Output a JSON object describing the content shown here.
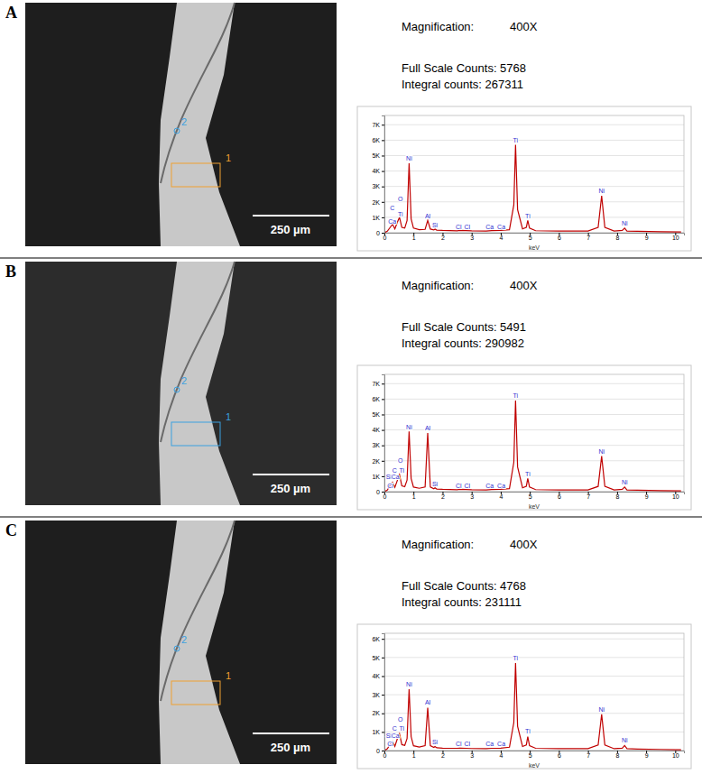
{
  "chart_data": [
    {
      "type": "line",
      "title": "A",
      "x_label": "keV",
      "annotations": [
        "Magnification:",
        "400X",
        "Full Scale Counts: 5768",
        "Integral counts: 267311"
      ],
      "region_labels": [
        "1",
        "2"
      ],
      "scale_bar": "250 µm",
      "color": "#c00000",
      "grid": true,
      "xlim": [
        0,
        10.3
      ],
      "xticks": [
        0,
        1,
        2,
        3,
        4,
        5,
        6,
        7,
        8,
        9,
        10
      ],
      "ylim": [
        0,
        7600
      ],
      "yticks": [
        0,
        {
          "value": 1000,
          "label": "1K"
        },
        {
          "value": 2000,
          "label": "2K"
        },
        {
          "value": 3000,
          "label": "3K"
        },
        {
          "value": 4000,
          "label": "4K"
        },
        {
          "value": 5000,
          "label": "5K"
        },
        {
          "value": 6000,
          "label": "6K"
        },
        {
          "value": 7000,
          "label": "7K"
        }
      ],
      "x": [
        0,
        0.1,
        0.2,
        0.28,
        0.36,
        0.45,
        0.52,
        0.6,
        0.7,
        0.78,
        0.85,
        0.92,
        1.0,
        1.2,
        1.4,
        1.49,
        1.58,
        1.7,
        1.74,
        1.8,
        2.0,
        2.5,
        2.62,
        2.8,
        3.0,
        3.5,
        3.69,
        4.0,
        4.3,
        4.45,
        4.51,
        4.58,
        4.75,
        4.88,
        4.93,
        4.99,
        5.2,
        6.0,
        7.0,
        7.35,
        7.47,
        7.58,
        7.9,
        8.18,
        8.26,
        8.34,
        8.7,
        9.5,
        10.2
      ],
      "values": [
        0,
        100,
        350,
        550,
        250,
        700,
        1000,
        350,
        300,
        800,
        4500,
        900,
        300,
        200,
        220,
        800,
        240,
        180,
        230,
        170,
        150,
        130,
        150,
        140,
        120,
        110,
        140,
        150,
        200,
        1800,
        5700,
        1500,
        250,
        350,
        800,
        300,
        130,
        110,
        110,
        350,
        2400,
        350,
        110,
        150,
        300,
        110,
        90,
        70,
        50
      ],
      "peak_labels": [
        {
          "label": "C",
          "x": 0.27,
          "y": 1400
        },
        {
          "label": "Ca",
          "x": 0.27,
          "y": 550
        },
        {
          "label": "O",
          "x": 0.55,
          "y": 2000
        },
        {
          "label": "Ti",
          "x": 0.55,
          "y": 1000
        },
        {
          "label": "Ni",
          "x": 0.85,
          "y": 4600
        },
        {
          "label": "Al",
          "x": 1.49,
          "y": 900
        },
        {
          "label": "Si",
          "x": 1.74,
          "y": 280
        },
        {
          "label": "Cl",
          "x": 2.55,
          "y": 200
        },
        {
          "label": "Cl",
          "x": 2.85,
          "y": 200
        },
        {
          "label": "Ca",
          "x": 3.62,
          "y": 200
        },
        {
          "label": "Ca",
          "x": 4.02,
          "y": 200
        },
        {
          "label": "Ti",
          "x": 4.51,
          "y": 5800
        },
        {
          "label": "Ti",
          "x": 4.93,
          "y": 900
        },
        {
          "label": "Ni",
          "x": 7.47,
          "y": 2500
        },
        {
          "label": "Ni",
          "x": 8.26,
          "y": 400
        }
      ]
    },
    {
      "type": "line",
      "title": "B",
      "x_label": "keV",
      "annotations": [
        "Magnification:",
        "400X",
        "Full Scale Counts: 5491",
        "Integral counts: 290982"
      ],
      "region_labels": [
        "1",
        "2"
      ],
      "scale_bar": "250 µm",
      "color": "#c00000",
      "grid": true,
      "xlim": [
        0,
        10.3
      ],
      "xticks": [
        0,
        1,
        2,
        3,
        4,
        5,
        6,
        7,
        8,
        9,
        10
      ],
      "ylim": [
        0,
        7600
      ],
      "yticks": [
        0,
        {
          "value": 1000,
          "label": "1K"
        },
        {
          "value": 2000,
          "label": "2K"
        },
        {
          "value": 3000,
          "label": "3K"
        },
        {
          "value": 4000,
          "label": "4K"
        },
        {
          "value": 5000,
          "label": "5K"
        },
        {
          "value": 6000,
          "label": "6K"
        },
        {
          "value": 7000,
          "label": "7K"
        }
      ],
      "x": [
        0,
        0.1,
        0.2,
        0.28,
        0.36,
        0.45,
        0.52,
        0.6,
        0.7,
        0.78,
        0.85,
        0.92,
        1.0,
        1.2,
        1.4,
        1.49,
        1.58,
        1.7,
        1.74,
        1.8,
        2.0,
        2.5,
        2.62,
        2.8,
        3.0,
        3.5,
        3.69,
        4.0,
        4.3,
        4.45,
        4.51,
        4.58,
        4.75,
        4.88,
        4.93,
        4.99,
        5.2,
        6.0,
        7.0,
        7.35,
        7.47,
        7.58,
        7.9,
        8.18,
        8.26,
        8.34,
        8.7,
        9.5,
        10.2
      ],
      "values": [
        0,
        100,
        400,
        600,
        280,
        750,
        1100,
        380,
        320,
        750,
        3900,
        850,
        300,
        220,
        300,
        3800,
        300,
        190,
        250,
        170,
        150,
        130,
        150,
        140,
        120,
        110,
        140,
        150,
        200,
        1900,
        5900,
        1600,
        250,
        350,
        850,
        300,
        130,
        110,
        110,
        340,
        2300,
        340,
        110,
        150,
        300,
        110,
        90,
        70,
        50
      ],
      "peak_labels": [
        {
          "label": "Si",
          "x": 0.15,
          "y": 750
        },
        {
          "label": "Ca",
          "x": 0.38,
          "y": 750
        },
        {
          "label": "Cl",
          "x": 0.2,
          "y": 200
        },
        {
          "label": "O",
          "x": 0.55,
          "y": 1800
        },
        {
          "label": "C",
          "x": 0.35,
          "y": 1150
        },
        {
          "label": "Ti",
          "x": 0.6,
          "y": 1150
        },
        {
          "label": "Ni",
          "x": 0.85,
          "y": 4000
        },
        {
          "label": "Al",
          "x": 1.49,
          "y": 3900
        },
        {
          "label": "Si",
          "x": 1.74,
          "y": 300
        },
        {
          "label": "Cl",
          "x": 2.55,
          "y": 200
        },
        {
          "label": "Cl",
          "x": 2.85,
          "y": 200
        },
        {
          "label": "Ca",
          "x": 3.62,
          "y": 200
        },
        {
          "label": "Ca",
          "x": 4.02,
          "y": 200
        },
        {
          "label": "Ti",
          "x": 4.51,
          "y": 6000
        },
        {
          "label": "Ti",
          "x": 4.93,
          "y": 950
        },
        {
          "label": "Ni",
          "x": 7.47,
          "y": 2400
        },
        {
          "label": "Ni",
          "x": 8.26,
          "y": 400
        }
      ]
    },
    {
      "type": "line",
      "title": "C",
      "x_label": "keV",
      "annotations": [
        "Magnification:",
        "400X",
        "Full Scale Counts: 4768",
        "Integral counts: 231111"
      ],
      "region_labels": [
        "1",
        "2"
      ],
      "scale_bar": "250 µm",
      "color": "#c00000",
      "grid": true,
      "xlim": [
        0,
        10.3
      ],
      "xticks": [
        0,
        1,
        2,
        3,
        4,
        5,
        6,
        7,
        8,
        9,
        10
      ],
      "ylim": [
        0,
        6300
      ],
      "yticks": [
        0,
        {
          "value": 1000,
          "label": "1K"
        },
        {
          "value": 2000,
          "label": "2K"
        },
        {
          "value": 3000,
          "label": "3K"
        },
        {
          "value": 4000,
          "label": "4K"
        },
        {
          "value": 5000,
          "label": "5K"
        },
        {
          "value": 6000,
          "label": "6K"
        }
      ],
      "x": [
        0,
        0.1,
        0.2,
        0.28,
        0.36,
        0.45,
        0.52,
        0.6,
        0.7,
        0.78,
        0.85,
        0.92,
        1.0,
        1.2,
        1.4,
        1.49,
        1.58,
        1.7,
        1.74,
        1.8,
        2.0,
        2.5,
        2.62,
        2.8,
        3.0,
        3.5,
        3.69,
        4.0,
        4.3,
        4.45,
        4.51,
        4.58,
        4.75,
        4.88,
        4.93,
        4.99,
        5.2,
        6.0,
        7.0,
        7.35,
        7.47,
        7.58,
        7.9,
        8.18,
        8.26,
        8.34,
        8.7,
        9.5,
        10.2
      ],
      "values": [
        0,
        90,
        330,
        500,
        230,
        650,
        900,
        320,
        280,
        650,
        3300,
        750,
        260,
        190,
        260,
        2300,
        260,
        170,
        220,
        150,
        130,
        120,
        130,
        120,
        110,
        100,
        120,
        130,
        180,
        1500,
        4700,
        1300,
        220,
        300,
        750,
        260,
        120,
        100,
        100,
        300,
        1950,
        300,
        100,
        130,
        270,
        100,
        80,
        60,
        45
      ],
      "peak_labels": [
        {
          "label": "Si",
          "x": 0.15,
          "y": 650
        },
        {
          "label": "Ca",
          "x": 0.38,
          "y": 650
        },
        {
          "label": "Cl",
          "x": 0.2,
          "y": 170
        },
        {
          "label": "O",
          "x": 0.55,
          "y": 1500
        },
        {
          "label": "C",
          "x": 0.35,
          "y": 1000
        },
        {
          "label": "Ti",
          "x": 0.6,
          "y": 1000
        },
        {
          "label": "Ni",
          "x": 0.85,
          "y": 3400
        },
        {
          "label": "Al",
          "x": 1.49,
          "y": 2400
        },
        {
          "label": "Si",
          "x": 1.74,
          "y": 280
        },
        {
          "label": "Cl",
          "x": 2.55,
          "y": 180
        },
        {
          "label": "Cl",
          "x": 2.85,
          "y": 180
        },
        {
          "label": "Ca",
          "x": 3.62,
          "y": 180
        },
        {
          "label": "Ca",
          "x": 4.02,
          "y": 180
        },
        {
          "label": "Ti",
          "x": 4.51,
          "y": 4800
        },
        {
          "label": "Ti",
          "x": 4.93,
          "y": 850
        },
        {
          "label": "Ni",
          "x": 7.47,
          "y": 2050
        },
        {
          "label": "Ni",
          "x": 8.26,
          "y": 370
        }
      ]
    }
  ]
}
